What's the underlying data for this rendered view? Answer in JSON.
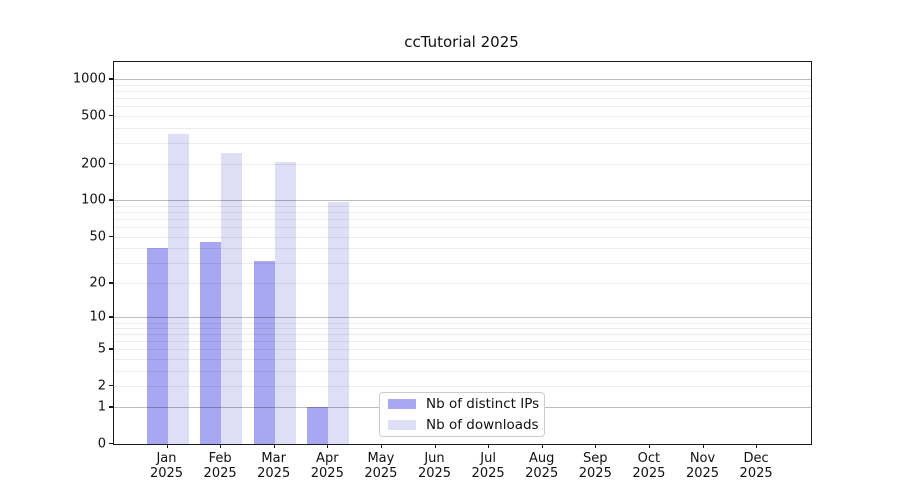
{
  "figure": {
    "title": "ccTutorial 2025"
  },
  "chart_data": {
    "type": "bar",
    "title": "ccTutorial 2025",
    "categories": [
      "Jan 2025",
      "Feb 2025",
      "Mar 2025",
      "Apr 2025",
      "May 2025",
      "Jun 2025",
      "Jul 2025",
      "Aug 2025",
      "Sep 2025",
      "Oct 2025",
      "Nov 2025",
      "Dec 2025"
    ],
    "series": [
      {
        "name": "Nb of distinct IPs",
        "color": "#a7a7f2",
        "values": [
          40,
          45,
          31,
          1,
          0,
          0,
          0,
          0,
          0,
          0,
          0,
          0
        ]
      },
      {
        "name": "Nb of downloads",
        "color": "#dedef6",
        "values": [
          355,
          248,
          209,
          97,
          0,
          0,
          0,
          0,
          0,
          0,
          0,
          0
        ]
      }
    ],
    "y_axis": {
      "scale": "log1p",
      "tick_labels": [
        0,
        1,
        2,
        5,
        10,
        20,
        50,
        100,
        200,
        500,
        1000
      ],
      "major_gridlines": [
        1,
        10,
        100,
        1000
      ],
      "minor_gridlines_per_decade": [
        2,
        3,
        4,
        5,
        6,
        7,
        8,
        9
      ],
      "ylim": [
        0,
        1420
      ]
    },
    "legend": {
      "location": "inside lower area, left of center",
      "entries": [
        "Nb of distinct IPs",
        "Nb of downloads"
      ]
    },
    "grid": "horizontal gridlines drawn above bars"
  }
}
